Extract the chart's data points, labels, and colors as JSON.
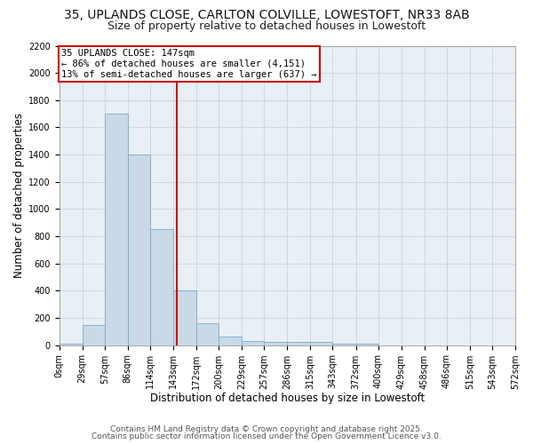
{
  "title_line1": "35, UPLANDS CLOSE, CARLTON COLVILLE, LOWESTOFT, NR33 8AB",
  "title_line2": "Size of property relative to detached houses in Lowestoft",
  "xlabel": "Distribution of detached houses by size in Lowestoft",
  "ylabel": "Number of detached properties",
  "bar_edges": [
    0,
    29,
    57,
    86,
    114,
    143,
    172,
    200,
    229,
    257,
    286,
    315,
    343,
    372,
    400,
    429,
    458,
    486,
    515,
    543,
    572
  ],
  "bar_heights": [
    10,
    150,
    1700,
    1400,
    850,
    400,
    160,
    65,
    30,
    25,
    25,
    25,
    10,
    10,
    0,
    0,
    0,
    0,
    0,
    0
  ],
  "bar_color": "#c9d9e8",
  "bar_edge_color": "#7aaac8",
  "vline_x": 147,
  "vline_color": "#cc0000",
  "annotation_line1": "35 UPLANDS CLOSE: 147sqm",
  "annotation_line2": "← 86% of detached houses are smaller (4,151)",
  "annotation_line3": "13% of semi-detached houses are larger (637) →",
  "annotation_box_color": "#cc0000",
  "ylim": [
    0,
    2200
  ],
  "yticks": [
    0,
    200,
    400,
    600,
    800,
    1000,
    1200,
    1400,
    1600,
    1800,
    2000,
    2200
  ],
  "tick_labels": [
    "0sqm",
    "29sqm",
    "57sqm",
    "86sqm",
    "114sqm",
    "143sqm",
    "172sqm",
    "200sqm",
    "229sqm",
    "257sqm",
    "286sqm",
    "315sqm",
    "343sqm",
    "372sqm",
    "400sqm",
    "429sqm",
    "458sqm",
    "486sqm",
    "515sqm",
    "543sqm",
    "572sqm"
  ],
  "background_color": "#ffffff",
  "plot_bg_color": "#e8eff5",
  "grid_color": "#c8d4de",
  "footer_line1": "Contains HM Land Registry data © Crown copyright and database right 2025.",
  "footer_line2": "Contains public sector information licensed under the Open Government Licence v3.0.",
  "title_fontsize": 10,
  "subtitle_fontsize": 9,
  "axis_label_fontsize": 8.5,
  "tick_fontsize": 7,
  "footer_fontsize": 6.5,
  "ann_fontsize": 7.5
}
